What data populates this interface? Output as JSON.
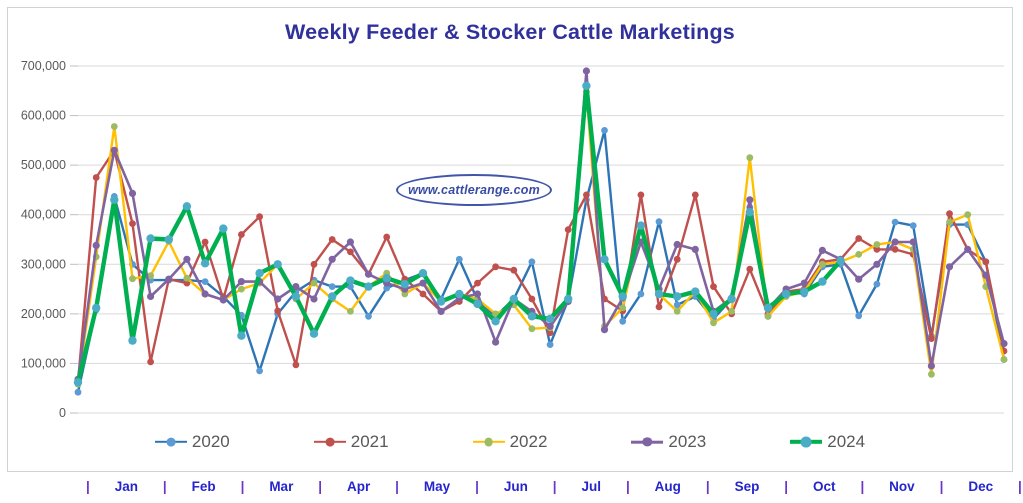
{
  "chart": {
    "title": "Weekly Feeder & Stocker Cattle Marketings",
    "title_color": "#31319c",
    "watermark_text": "www.cattlerange.com",
    "watermark_color": "#3a4ca5",
    "grid_color": "#d9d9d9",
    "tick_color": "#bfbfbf",
    "axis_label_color": "#595959",
    "y_tick_labels": [
      "700,000",
      "600,000",
      "500,000",
      "400,000",
      "300,000",
      "200,000",
      "100,000",
      "0"
    ],
    "months": [
      "Jan",
      "Feb",
      "Mar",
      "Apr",
      "May",
      "Jun",
      "Jul",
      "Aug",
      "Sep",
      "Oct",
      "Nov",
      "Dec"
    ],
    "month_color": "#2525cd",
    "separator": "|",
    "separator_color": "#6a35c8"
  },
  "chart_data": {
    "type": "line",
    "title": "Weekly Feeder & Stocker Cattle Marketings",
    "x_unit": "week of year",
    "weeks": 52,
    "ylim": [
      0,
      700000
    ],
    "grid": "horizontal",
    "legend_position": "bottom",
    "series": [
      {
        "name": "2020",
        "color": "#2e75b6",
        "marker_color": "#5b9bd5",
        "line_width": 2.4,
        "marker_radius": 3.4,
        "values": [
          42000,
          208000,
          437000,
          300000,
          268000,
          268000,
          268000,
          265000,
          235000,
          197000,
          85000,
          200000,
          245000,
          268000,
          255000,
          255000,
          195000,
          252000,
          268000,
          282000,
          230000,
          310000,
          228000,
          195000,
          230000,
          305000,
          138000,
          228000,
          430000,
          570000,
          185000,
          240000,
          386000,
          218000,
          235000,
          190000,
          230000,
          415000,
          195000,
          245000,
          240000,
          295000,
          300000,
          196000,
          260000,
          385000,
          378000,
          155000,
          380000,
          380000,
          305000,
          108000
        ]
      },
      {
        "name": "2021",
        "color": "#c0504d",
        "marker_color": "#c0504d",
        "line_width": 2.4,
        "marker_radius": 3.4,
        "values": [
          63000,
          475000,
          530000,
          382000,
          103000,
          270000,
          262000,
          345000,
          230000,
          360000,
          396000,
          206000,
          97000,
          300000,
          350000,
          325000,
          280000,
          355000,
          270000,
          240000,
          205000,
          225000,
          262000,
          295000,
          288000,
          230000,
          162000,
          370000,
          440000,
          230000,
          206000,
          440000,
          214000,
          310000,
          440000,
          255000,
          200000,
          290000,
          200000,
          245000,
          250000,
          305000,
          310000,
          352000,
          330000,
          330000,
          320000,
          150000,
          402000,
          330000,
          305000,
          125000
        ]
      },
      {
        "name": "2022",
        "color": "#ffc000",
        "marker_color": "#9dbb61",
        "line_width": 2.4,
        "marker_radius": 3.4,
        "values": [
          58000,
          315000,
          578000,
          271000,
          277000,
          346000,
          272000,
          240000,
          228000,
          250000,
          262000,
          300000,
          230000,
          262000,
          230000,
          205000,
          255000,
          282000,
          240000,
          262000,
          225000,
          240000,
          230000,
          200000,
          218000,
          170000,
          172000,
          230000,
          648000,
          175000,
          212000,
          372000,
          240000,
          205000,
          245000,
          182000,
          205000,
          515000,
          195000,
          235000,
          245000,
          300000,
          305000,
          320000,
          340000,
          345000,
          330000,
          78000,
          385000,
          400000,
          255000,
          108000
        ]
      },
      {
        "name": "2023",
        "color": "#8064a2",
        "marker_color": "#8064a2",
        "line_width": 2.6,
        "marker_radius": 3.6,
        "values": [
          68000,
          338000,
          530000,
          443000,
          235000,
          270000,
          310000,
          240000,
          228000,
          265000,
          265000,
          230000,
          255000,
          230000,
          310000,
          345000,
          280000,
          262000,
          250000,
          262000,
          205000,
          232000,
          240000,
          143000,
          230000,
          205000,
          175000,
          225000,
          690000,
          168000,
          232000,
          345000,
          250000,
          340000,
          330000,
          205000,
          232000,
          430000,
          210000,
          250000,
          262000,
          328000,
          310000,
          270000,
          300000,
          345000,
          345000,
          95000,
          295000,
          330000,
          278000,
          140000
        ]
      },
      {
        "name": "2024",
        "color": "#00b050",
        "marker_color": "#4bacc6",
        "line_width": 4.4,
        "marker_radius": 4.2,
        "values": [
          62000,
          212000,
          430000,
          146000,
          352000,
          350000,
          417000,
          302000,
          372000,
          156000,
          282000,
          300000,
          235000,
          160000,
          235000,
          267000,
          255000,
          272000,
          260000,
          282000,
          225000,
          240000,
          220000,
          185000,
          230000,
          195000,
          190000,
          230000,
          660000,
          310000,
          235000,
          378000,
          240000,
          235000,
          245000,
          200000,
          230000,
          405000,
          212000,
          240000,
          245000,
          265000,
          307000
        ]
      }
    ]
  }
}
